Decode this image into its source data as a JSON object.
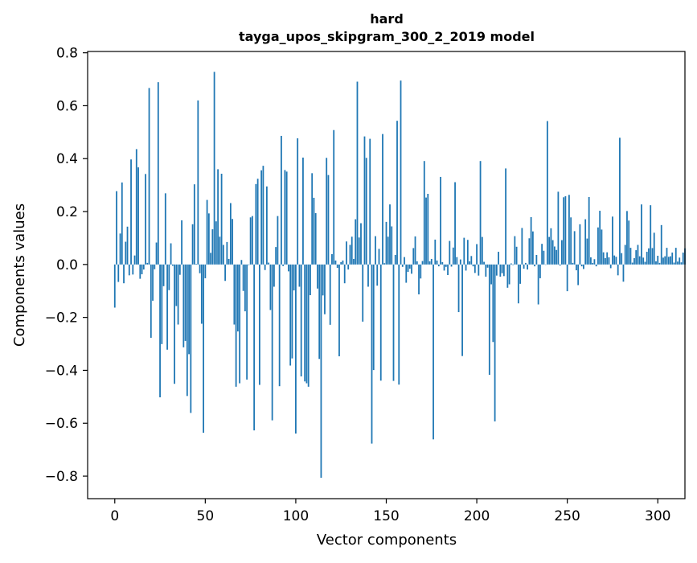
{
  "chart_data": {
    "type": "bar",
    "title_line1": "hard",
    "title_line2": "tayga_upos_skipgram_300_2_2019 model",
    "xlabel": "Vector components",
    "ylabel": "Components values",
    "xlim": [
      -15,
      315
    ],
    "ylim": [
      -0.885,
      0.805
    ],
    "xticks": [
      0,
      50,
      100,
      150,
      200,
      250,
      300
    ],
    "xtick_labels": [
      "0",
      "50",
      "100",
      "150",
      "200",
      "250",
      "300"
    ],
    "yticks": [
      0.8,
      0.6,
      0.4,
      0.2,
      0.0,
      -0.2,
      -0.4,
      -0.6,
      -0.8
    ],
    "ytick_labels": [
      "0.8",
      "0.6",
      "0.4",
      "0.2",
      "0.0",
      "−0.2",
      "−0.4",
      "−0.6",
      "−0.8"
    ],
    "bar_color": "#1f77b4",
    "values": [
      -0.163,
      0.277,
      -0.066,
      0.117,
      0.31,
      -0.071,
      0.086,
      0.143,
      -0.041,
      0.397,
      -0.038,
      0.034,
      0.436,
      0.367,
      -0.054,
      -0.037,
      -0.019,
      0.342,
      0.006,
      0.667,
      -0.277,
      -0.137,
      -0.018,
      0.083,
      0.689,
      -0.502,
      -0.301,
      -0.082,
      0.269,
      -0.322,
      -0.097,
      0.08,
      -0.005,
      -0.451,
      -0.157,
      -0.227,
      -0.039,
      0.167,
      -0.313,
      -0.289,
      -0.497,
      -0.339,
      -0.561,
      0.152,
      0.303,
      0.002,
      0.62,
      -0.033,
      -0.224,
      -0.636,
      -0.052,
      0.244,
      0.193,
      0.044,
      0.133,
      0.728,
      0.163,
      0.36,
      0.105,
      0.343,
      0.074,
      -0.062,
      0.085,
      0.021,
      0.232,
      0.172,
      -0.227,
      -0.462,
      -0.253,
      -0.449,
      0.017,
      -0.1,
      -0.177,
      -0.435,
      -0.002,
      0.178,
      0.183,
      -0.627,
      0.304,
      0.324,
      -0.455,
      0.356,
      0.373,
      -0.021,
      0.295,
      0.007,
      -0.172,
      -0.589,
      -0.084,
      0.066,
      0.183,
      -0.46,
      0.486,
      -0.006,
      0.357,
      0.351,
      -0.026,
      -0.382,
      -0.355,
      -0.098,
      -0.639,
      0.477,
      -0.084,
      -0.423,
      0.404,
      -0.442,
      -0.449,
      -0.462,
      -0.116,
      0.345,
      0.252,
      0.194,
      -0.091,
      -0.357,
      -0.806,
      -0.117,
      -0.188,
      0.403,
      0.338,
      -0.228,
      0.039,
      0.508,
      0.015,
      -0.013,
      -0.347,
      0.009,
      0.015,
      -0.071,
      0.087,
      -0.019,
      0.074,
      0.105,
      0.021,
      0.171,
      0.691,
      0.102,
      0.156,
      -0.216,
      0.484,
      0.403,
      -0.084,
      0.475,
      -0.677,
      -0.399,
      0.107,
      -0.08,
      0.059,
      -0.439,
      0.493,
      0.005,
      0.161,
      0.105,
      0.227,
      0.144,
      -0.44,
      0.036,
      0.543,
      -0.454,
      0.695,
      -0.009,
      0.028,
      -0.069,
      -0.028,
      -0.016,
      -0.035,
      0.062,
      0.106,
      0.012,
      -0.113,
      -0.053,
      0.013,
      0.391,
      0.253,
      0.267,
      0.012,
      0.021,
      -0.661,
      0.094,
      0.015,
      -0.007,
      0.331,
      0.009,
      -0.023,
      -0.009,
      -0.04,
      0.089,
      -0.008,
      0.064,
      0.311,
      0.028,
      -0.18,
      0.019,
      -0.346,
      0.101,
      -0.023,
      0.093,
      0.012,
      0.032,
      -0.007,
      -0.032,
      0.077,
      -0.042,
      0.391,
      0.104,
      0.01,
      -0.046,
      -0.012,
      -0.417,
      -0.075,
      -0.293,
      -0.593,
      -0.042,
      0.048,
      -0.046,
      -0.033,
      -0.044,
      0.363,
      -0.088,
      -0.075,
      0.004,
      -0.002,
      0.107,
      0.067,
      -0.147,
      -0.073,
      0.138,
      -0.016,
      0.006,
      -0.019,
      0.099,
      0.179,
      0.125,
      -0.007,
      0.036,
      -0.151,
      -0.052,
      0.078,
      0.052,
      -0.001,
      0.542,
      0.104,
      0.137,
      0.092,
      0.068,
      0.055,
      0.275,
      -0.004,
      0.092,
      0.254,
      0.258,
      -0.101,
      0.263,
      0.178,
      0.006,
      0.126,
      -0.022,
      -0.078,
      0.152,
      -0.007,
      -0.017,
      0.171,
      0.098,
      0.255,
      0.027,
      0.006,
      0.02,
      -0.007,
      0.14,
      0.203,
      0.132,
      0.046,
      0.024,
      0.046,
      0.027,
      -0.014,
      0.181,
      0.034,
      0.029,
      -0.041,
      0.479,
      0.043,
      -0.065,
      0.074,
      0.202,
      0.166,
      0.063,
      0.007,
      0.024,
      0.054,
      0.074,
      0.031,
      0.227,
      0.026,
      0.01,
      0.048,
      0.061,
      0.224,
      0.062,
      0.12,
      0.012,
      0.033,
      0.006,
      0.149,
      0.026,
      0.031,
      0.063,
      0.029,
      0.031,
      0.045,
      0.007,
      0.063,
      0.011,
      0.026,
      0.008,
      0.045,
      0.061
    ]
  }
}
